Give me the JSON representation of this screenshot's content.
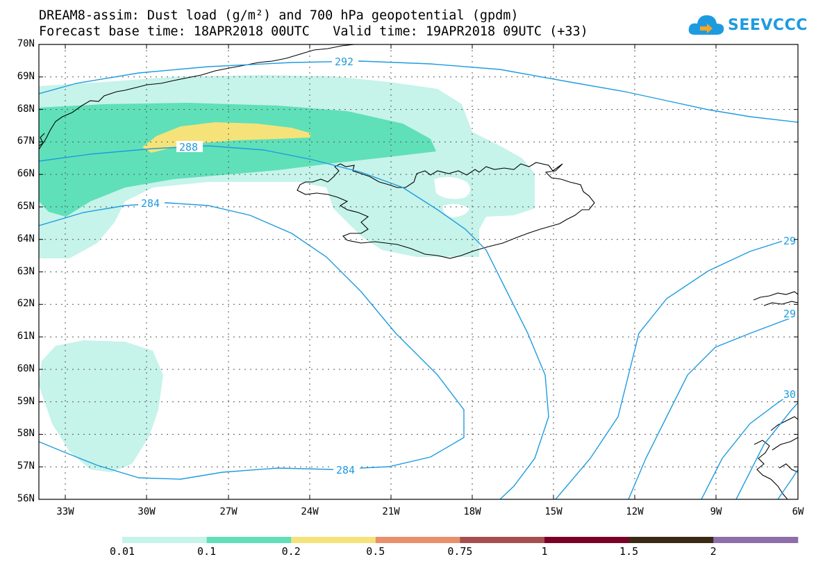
{
  "title": {
    "line1": "DREAM8-assim: Dust load (g/m²) and 700 hPa geopotential (gpdm)",
    "line2": "Forecast base time: 18APR2018 00UTC   Valid time: 19APR2018 09UTC (+33)"
  },
  "logo": {
    "text": "SEEVCCC",
    "icon": "cloud-icon"
  },
  "lat_ticks": [
    "70N",
    "69N",
    "68N",
    "67N",
    "66N",
    "65N",
    "64N",
    "63N",
    "62N",
    "61N",
    "60N",
    "59N",
    "58N",
    "57N",
    "56N"
  ],
  "lon_ticks": [
    "33W",
    "30W",
    "27W",
    "24W",
    "21W",
    "18W",
    "15W",
    "12W",
    "9W",
    "6W"
  ],
  "contour_labels": [
    "292",
    "288",
    "284",
    "284",
    "29",
    "29",
    "30"
  ],
  "colorbar": {
    "labels": [
      "0.01",
      "0.1",
      "0.2",
      "0.5",
      "0.75",
      "1",
      "1.5",
      "2"
    ],
    "colors": [
      "#c6f3ea",
      "#5fe0b9",
      "#f5e37a",
      "#e9906a",
      "#a5504e",
      "#7b0026",
      "#3a2a14",
      "#8e6ea8"
    ]
  },
  "colors": {
    "contour": "#1e9be0",
    "coast": "#000000"
  }
}
